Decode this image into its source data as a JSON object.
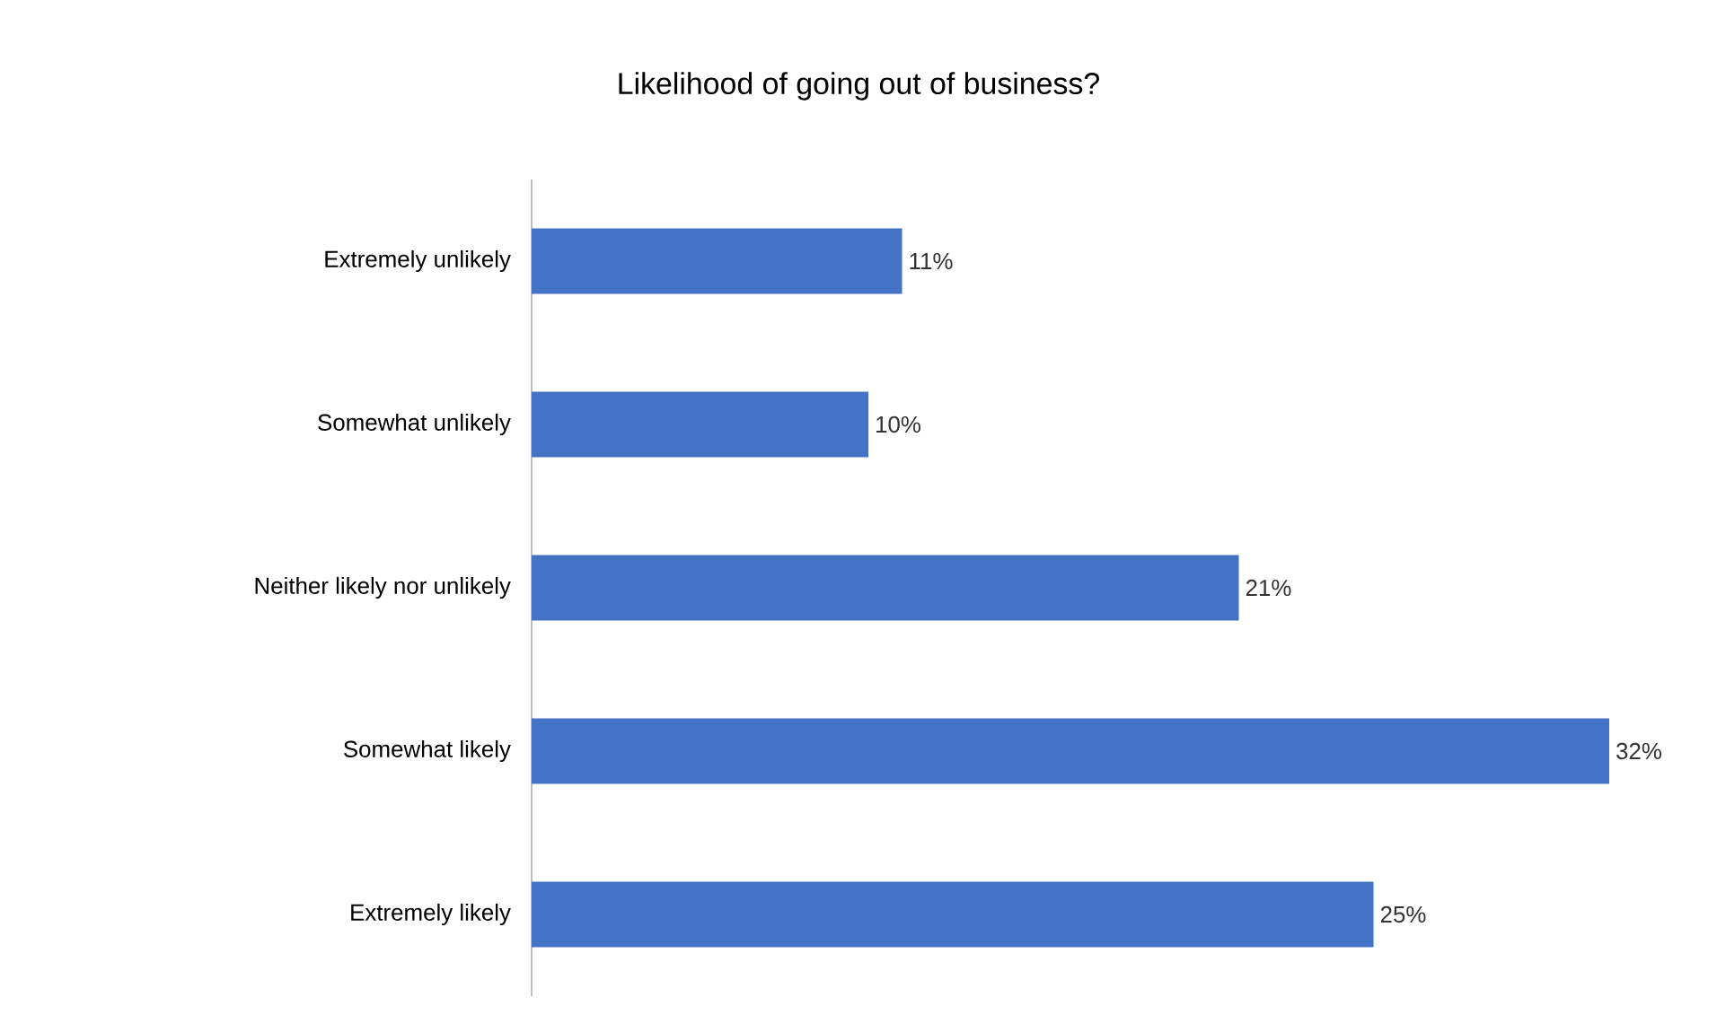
{
  "chart_data": {
    "type": "bar",
    "orientation": "horizontal",
    "title": "Likelihood of going out of business?",
    "categories": [
      "Extremely unlikely",
      "Somewhat unlikely",
      "Neither likely nor unlikely",
      "Somewhat likely",
      "Extremely likely"
    ],
    "values": [
      11,
      10,
      21,
      32,
      25
    ],
    "value_labels": [
      "11%",
      "10%",
      "21%",
      "32%",
      "25%"
    ],
    "color": "#4472c4"
  }
}
